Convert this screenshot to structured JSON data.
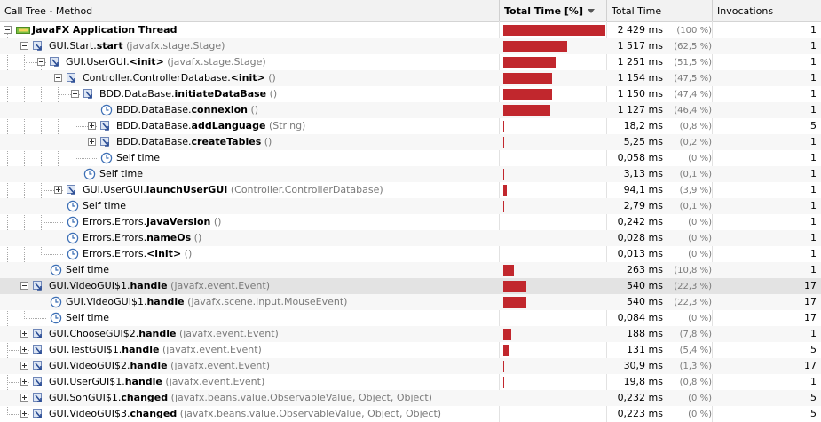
{
  "columns": {
    "method": "Call Tree - Method",
    "total_pct": "Total Time [%]",
    "total_time": "Total Time",
    "invocations": "Invocations"
  },
  "rows": [
    {
      "depth": 0,
      "expander": "minus",
      "icon": "thread-icon",
      "pkg": "",
      "name": "JavaFX Application Thread",
      "args": "",
      "bold_all": true,
      "pct": 100,
      "time": "2 429 ms",
      "pctlabel": "(100 %)",
      "inv": "1"
    },
    {
      "depth": 1,
      "expander": "minus",
      "icon": "method-icon",
      "pkg": "GUI.Start.",
      "name": "start",
      "args": "(javafx.stage.Stage)",
      "pct": 62.5,
      "time": "1 517 ms",
      "pctlabel": "(62,5 %)",
      "inv": "1"
    },
    {
      "depth": 2,
      "expander": "minus",
      "icon": "method-icon",
      "pkg": "GUI.UserGUI.",
      "name": "<init>",
      "args": "(javafx.stage.Stage)",
      "pct": 51.5,
      "time": "1 251 ms",
      "pctlabel": "(51,5 %)",
      "inv": "1"
    },
    {
      "depth": 3,
      "expander": "minus",
      "icon": "method-icon",
      "pkg": "Controller.ControllerDatabase.",
      "name": "<init>",
      "args": "()",
      "pct": 47.5,
      "time": "1 154 ms",
      "pctlabel": "(47,5 %)",
      "inv": "1"
    },
    {
      "depth": 4,
      "expander": "minus",
      "icon": "method-icon",
      "pkg": "BDD.DataBase.",
      "name": "initiateDataBase",
      "args": "()",
      "pct": 47.4,
      "time": "1 150 ms",
      "pctlabel": "(47,4 %)",
      "inv": "1"
    },
    {
      "depth": 5,
      "expander": "none",
      "icon": "clock-icon",
      "pkg": "BDD.DataBase.",
      "name": "connexion",
      "args": "()",
      "pct": 46.4,
      "time": "1 127 ms",
      "pctlabel": "(46,4 %)",
      "inv": "1"
    },
    {
      "depth": 5,
      "expander": "plus",
      "icon": "method-icon",
      "pkg": "BDD.DataBase.",
      "name": "addLanguage",
      "args": "(String)",
      "pct": 0.8,
      "time": "18,2 ms",
      "pctlabel": "(0,8 %)",
      "inv": "5"
    },
    {
      "depth": 5,
      "expander": "plus",
      "icon": "method-icon",
      "pkg": "BDD.DataBase.",
      "name": "createTables",
      "args": "()",
      "pct": 0.2,
      "time": "5,25 ms",
      "pctlabel": "(0,2 %)",
      "inv": "1"
    },
    {
      "depth": 5,
      "expander": "none",
      "icon": "clock-icon",
      "pkg": "Self time",
      "name": "",
      "args": "",
      "pct": 0,
      "time": "0,058 ms",
      "pctlabel": "(0 %)",
      "inv": "1"
    },
    {
      "depth": 4,
      "expander": "none",
      "icon": "clock-icon",
      "pkg": "Self time",
      "name": "",
      "args": "",
      "pct": 0.1,
      "time": "3,13 ms",
      "pctlabel": "(0,1 %)",
      "inv": "1"
    },
    {
      "depth": 3,
      "expander": "plus",
      "icon": "method-icon",
      "pkg": "GUI.UserGUI.",
      "name": "launchUserGUI",
      "args": "(Controller.ControllerDatabase)",
      "pct": 3.9,
      "time": "94,1 ms",
      "pctlabel": "(3,9 %)",
      "inv": "1"
    },
    {
      "depth": 3,
      "expander": "none",
      "icon": "clock-icon",
      "pkg": "Self time",
      "name": "",
      "args": "",
      "pct": 0.1,
      "time": "2,79 ms",
      "pctlabel": "(0,1 %)",
      "inv": "1"
    },
    {
      "depth": 3,
      "expander": "none",
      "icon": "clock-icon",
      "pkg": "Errors.Errors.",
      "name": "javaVersion",
      "args": "()",
      "pct": 0,
      "time": "0,242 ms",
      "pctlabel": "(0 %)",
      "inv": "1"
    },
    {
      "depth": 3,
      "expander": "none",
      "icon": "clock-icon",
      "pkg": "Errors.Errors.",
      "name": "nameOs",
      "args": "()",
      "pct": 0,
      "time": "0,028 ms",
      "pctlabel": "(0 %)",
      "inv": "1"
    },
    {
      "depth": 3,
      "expander": "none",
      "icon": "clock-icon",
      "pkg": "Errors.Errors.",
      "name": "<init>",
      "args": "()",
      "pct": 0,
      "time": "0,013 ms",
      "pctlabel": "(0 %)",
      "inv": "1"
    },
    {
      "depth": 2,
      "expander": "none",
      "icon": "clock-icon",
      "pkg": "Self time",
      "name": "",
      "args": "",
      "pct": 10.8,
      "time": "263 ms",
      "pctlabel": "(10,8 %)",
      "inv": "1"
    },
    {
      "depth": 1,
      "expander": "minus",
      "icon": "method-icon",
      "pkg": "GUI.VideoGUI$1.",
      "name": "handle",
      "args": "(javafx.event.Event)",
      "pct": 22.3,
      "time": "540 ms",
      "pctlabel": "(22,3 %)",
      "inv": "17",
      "selected": true
    },
    {
      "depth": 2,
      "expander": "none",
      "icon": "clock-icon",
      "pkg": "GUI.VideoGUI$1.",
      "name": "handle",
      "args": "(javafx.scene.input.MouseEvent)",
      "pct": 22.3,
      "time": "540 ms",
      "pctlabel": "(22,3 %)",
      "inv": "17"
    },
    {
      "depth": 2,
      "expander": "none",
      "icon": "clock-icon",
      "pkg": "Self time",
      "name": "",
      "args": "",
      "pct": 0,
      "time": "0,084 ms",
      "pctlabel": "(0 %)",
      "inv": "17"
    },
    {
      "depth": 1,
      "expander": "plus",
      "icon": "method-icon",
      "pkg": "GUI.ChooseGUI$2.",
      "name": "handle",
      "args": "(javafx.event.Event)",
      "pct": 7.8,
      "time": "188 ms",
      "pctlabel": "(7,8 %)",
      "inv": "1"
    },
    {
      "depth": 1,
      "expander": "plus",
      "icon": "method-icon",
      "pkg": "GUI.TestGUI$1.",
      "name": "handle",
      "args": "(javafx.event.Event)",
      "pct": 5.4,
      "time": "131 ms",
      "pctlabel": "(5,4 %)",
      "inv": "5"
    },
    {
      "depth": 1,
      "expander": "plus",
      "icon": "method-icon",
      "pkg": "GUI.VideoGUI$2.",
      "name": "handle",
      "args": "(javafx.event.Event)",
      "pct": 1.3,
      "time": "30,9 ms",
      "pctlabel": "(1,3 %)",
      "inv": "17"
    },
    {
      "depth": 1,
      "expander": "plus",
      "icon": "method-icon",
      "pkg": "GUI.UserGUI$1.",
      "name": "handle",
      "args": "(javafx.event.Event)",
      "pct": 0.8,
      "time": "19,8 ms",
      "pctlabel": "(0,8 %)",
      "inv": "1"
    },
    {
      "depth": 1,
      "expander": "plus",
      "icon": "method-icon",
      "pkg": "GUI.SonGUI$1.",
      "name": "changed",
      "args": "(javafx.beans.value.ObservableValue, Object, Object)",
      "pct": 0,
      "time": "0,232 ms",
      "pctlabel": "(0 %)",
      "inv": "5"
    },
    {
      "depth": 1,
      "expander": "plus",
      "icon": "method-icon",
      "pkg": "GUI.VideoGUI$3.",
      "name": "changed",
      "args": "(javafx.beans.value.ObservableValue, Object, Object)",
      "pct": 0,
      "time": "0,223 ms",
      "pctlabel": "(0 %)",
      "inv": "5"
    }
  ],
  "colors": {
    "bar": "#c1272d",
    "accent_method": "#3b5fb0",
    "clock": "#3b6eb5"
  }
}
